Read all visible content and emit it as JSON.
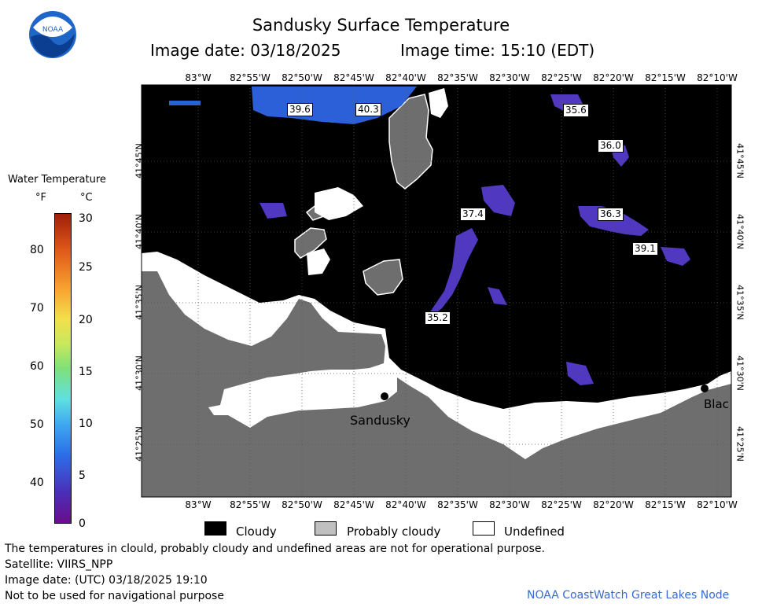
{
  "header": {
    "title": "Sandusky Surface Temperature",
    "image_date_label": "Image date: 03/18/2025",
    "image_time_label": "Image time: 15:10 (EDT)"
  },
  "logo": {
    "text": "NOAA"
  },
  "colorbar": {
    "title": "Water Temperature",
    "unit_f": "°F",
    "unit_c": "°C",
    "f_ticks": [
      "40",
      "50",
      "60",
      "70",
      "80"
    ],
    "c_ticks": [
      "0",
      "5",
      "10",
      "15",
      "20",
      "25",
      "30"
    ]
  },
  "map": {
    "lon_ticks": [
      "83°W",
      "82°55'W",
      "82°50'W",
      "82°45'W",
      "82°40'W",
      "82°35'W",
      "82°30'W",
      "82°25'W",
      "82°20'W",
      "82°15'W",
      "82°10'W"
    ],
    "lat_ticks": [
      "41°45'N",
      "41°40'N",
      "41°35'N",
      "41°30'N",
      "41°25'N"
    ],
    "temperature_labels": [
      "39.6",
      "40.3",
      "35.6",
      "36.0",
      "37.4",
      "36.3",
      "39.1",
      "35.2"
    ],
    "places": [
      "Sandusky",
      "Blac"
    ],
    "colors": {
      "cloudy": "#000000",
      "probably_cloudy": "#c0c0c0",
      "land": "#6e6e6e",
      "undefined": "#ffffff"
    }
  },
  "legend": {
    "cloudy": "Cloudy",
    "probably_cloudy": "Probably cloudy",
    "undefined": "Undefined"
  },
  "footer": {
    "disclaimer": "The temperatures in clould, probably cloudy and undefined areas are not for operational purpose.",
    "satellite": "Satellite: VIIRS_NPP",
    "utc_date": "Image date: (UTC) 03/18/2025  19:10",
    "nav_warning": "Not to be used for navigational purpose",
    "credit": "NOAA CoastWatch Great Lakes Node"
  }
}
